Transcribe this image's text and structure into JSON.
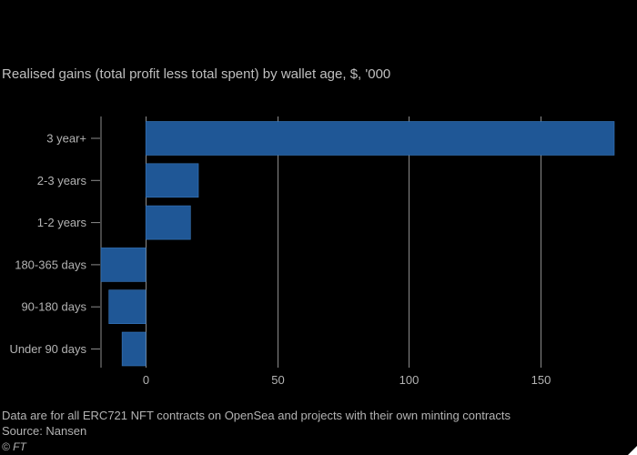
{
  "header": {
    "title": "Realised gains (total profit less total spent) by wallet age, $, '000"
  },
  "footer": {
    "note": "Data are for all ERC721 NFT contracts on OpenSea and projects with their own minting contracts",
    "source": "Source: Nansen",
    "credit": "© FT"
  },
  "colors": {
    "bar": "#1f5796",
    "bar_border": "#3a78bd",
    "grid": "#8c8c8c",
    "background": "#000000"
  },
  "chart_data": {
    "type": "bar",
    "orientation": "horizontal",
    "title": "Realised gains (total profit less total spent) by wallet age, $, '000",
    "xlabel": "",
    "ylabel": "",
    "categories": [
      "3 year+",
      "2-3 years",
      "1-2 years",
      "180-365 days",
      "90-180 days",
      "Under 90 days"
    ],
    "values": [
      178,
      20,
      17,
      -17,
      -14,
      -9
    ],
    "xlim": [
      -17,
      178
    ],
    "xticks": [
      0,
      50,
      100,
      150
    ],
    "xtick_labels": [
      "0",
      "50",
      "100",
      "150"
    ],
    "grid": true
  }
}
